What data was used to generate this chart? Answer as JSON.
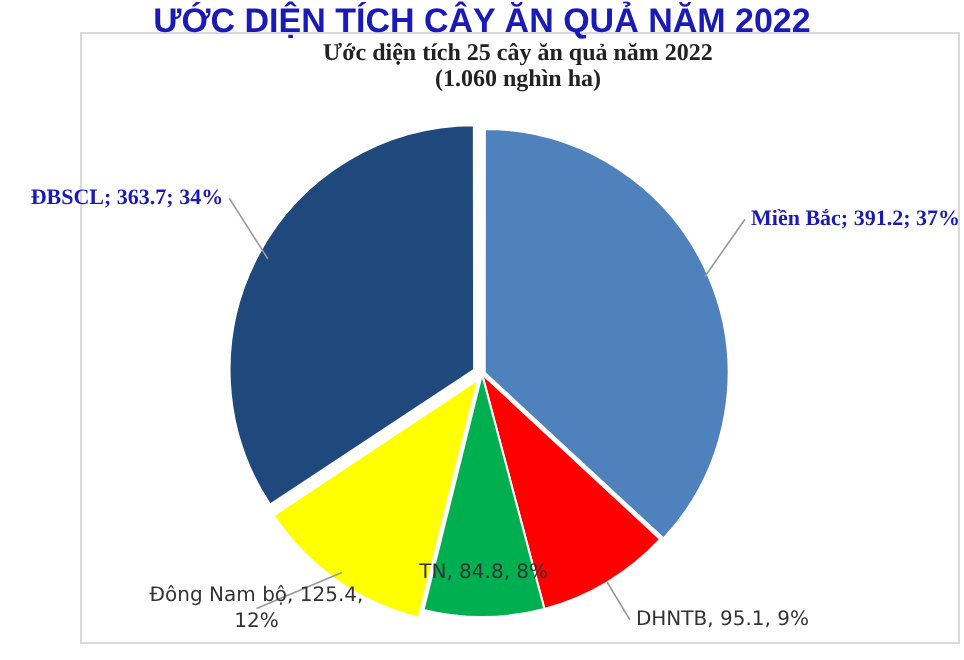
{
  "chart_data": {
    "type": "pie",
    "title": "ƯỚC DIỆN TÍCH CÂY ĂN QUẢ NĂM 2022",
    "subtitle": "Ước diện tích 25 cây ăn quả năm 2022\n(1.060 nghìn ha)",
    "categories": [
      "Miền Bắc",
      "DHNTB",
      "TN",
      "Đông Nam bộ",
      "ĐBSCL"
    ],
    "values": [
      391.2,
      95.1,
      84.8,
      125.4,
      363.7
    ],
    "colors": [
      "#4f81bd",
      "#ff0000",
      "#00b050",
      "#ffff00",
      "#1f497d"
    ],
    "value_labels": [
      "; 391.2; 37%",
      ", 95.1, 9%",
      ", 84.8, 8%",
      ", 125.4,\n12%",
      "; 363.7; 34%"
    ],
    "legend": false
  }
}
